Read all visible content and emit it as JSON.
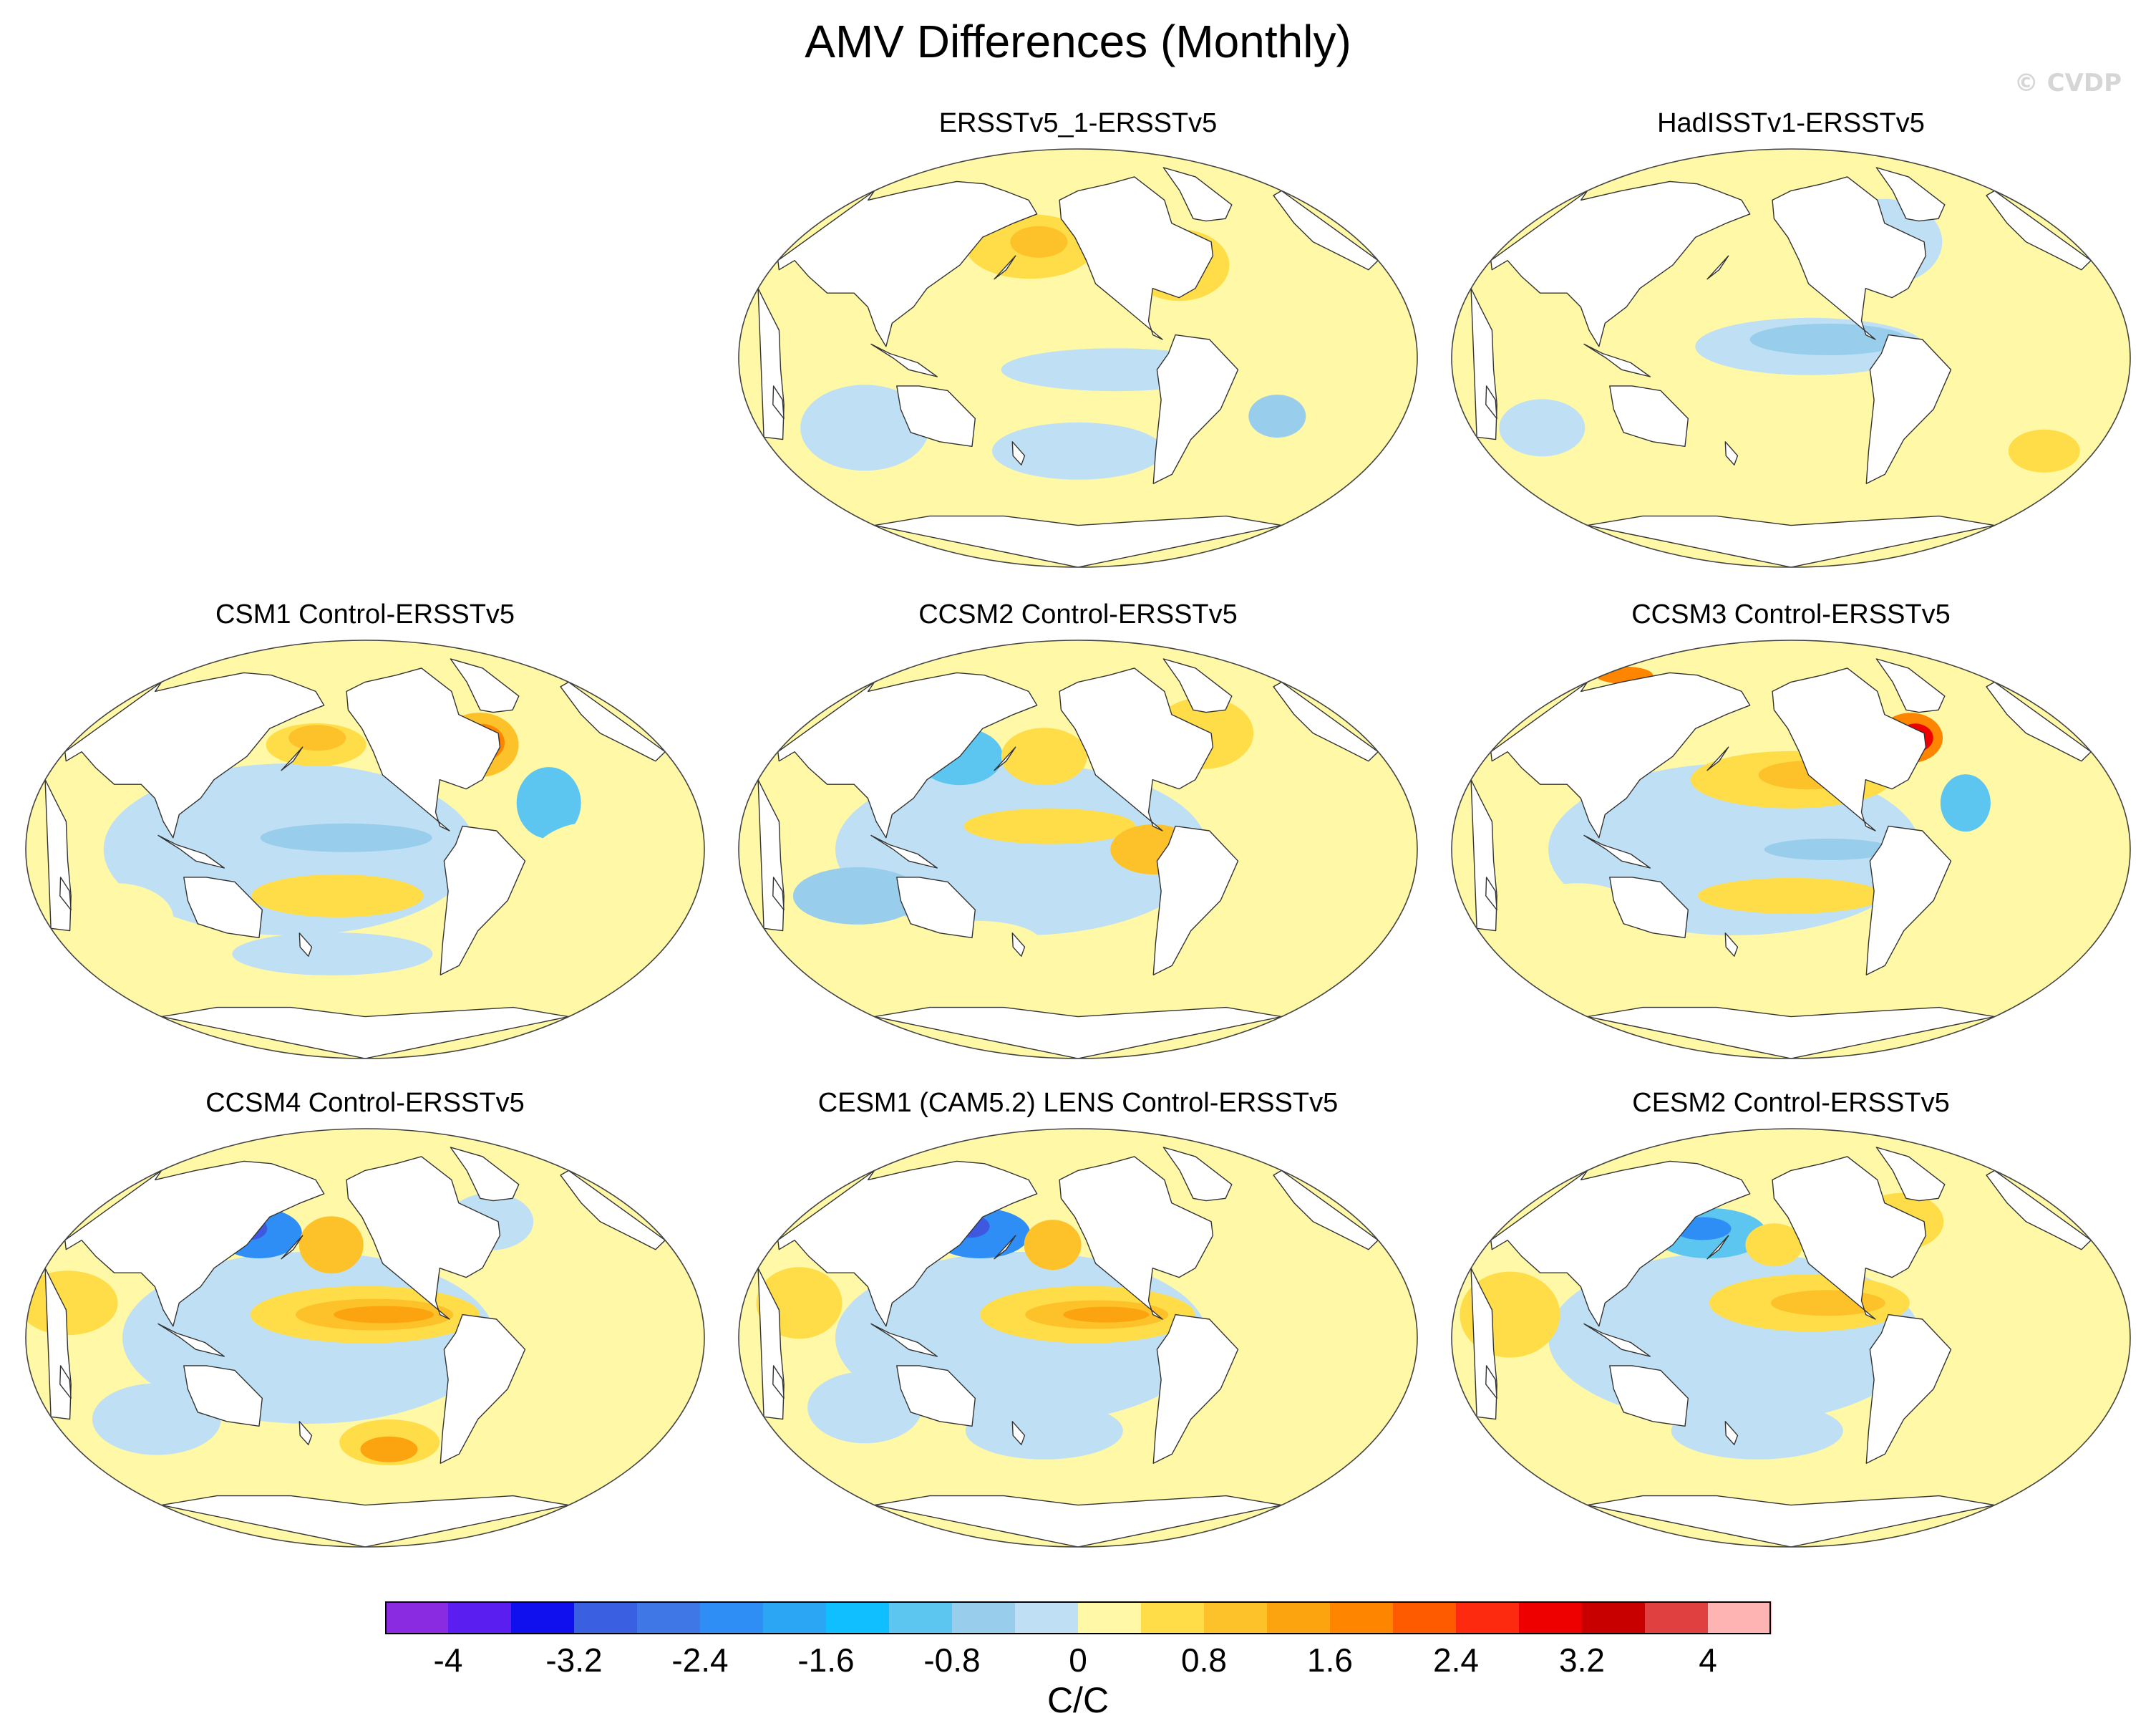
{
  "title": "AMV Differences (Monthly)",
  "watermark": "© CVDP",
  "panels": [
    {
      "title": "ERSSTv5_1-ERSSTv5",
      "variant": 0
    },
    {
      "title": "HadISSTv1-ERSSTv5",
      "variant": 1
    },
    {
      "title": "CSM1 Control-ERSSTv5",
      "variant": 2
    },
    {
      "title": "CCSM2 Control-ERSSTv5",
      "variant": 3
    },
    {
      "title": "CCSM3 Control-ERSSTv5",
      "variant": 4
    },
    {
      "title": "CCSM4 Control-ERSSTv5",
      "variant": 5
    },
    {
      "title": "CESM1 (CAM5.2) LENS Control-ERSSTv5",
      "variant": 6
    },
    {
      "title": "CESM2 Control-ERSSTv5",
      "variant": 7
    }
  ],
  "colorbar": {
    "colors": [
      "#8a2be2",
      "#5a1ff0",
      "#1010ee",
      "#3a5fe0",
      "#3f78e6",
      "#2f8ef5",
      "#2aa6f5",
      "#10bfff",
      "#5cc6f0",
      "#98cdec",
      "#bfe0f4",
      "#fff8a6",
      "#fedd48",
      "#fdc22a",
      "#fca410",
      "#fd8500",
      "#fe5a00",
      "#fe2a10",
      "#ee0000",
      "#c80000",
      "#e04040",
      "#ffb4b4"
    ],
    "labels": [
      "-4",
      "-3.2",
      "-2.4",
      "-1.6",
      "-0.8",
      "0",
      "0.8",
      "1.6",
      "2.4",
      "3.2",
      "4"
    ],
    "unit": "C/C"
  }
}
